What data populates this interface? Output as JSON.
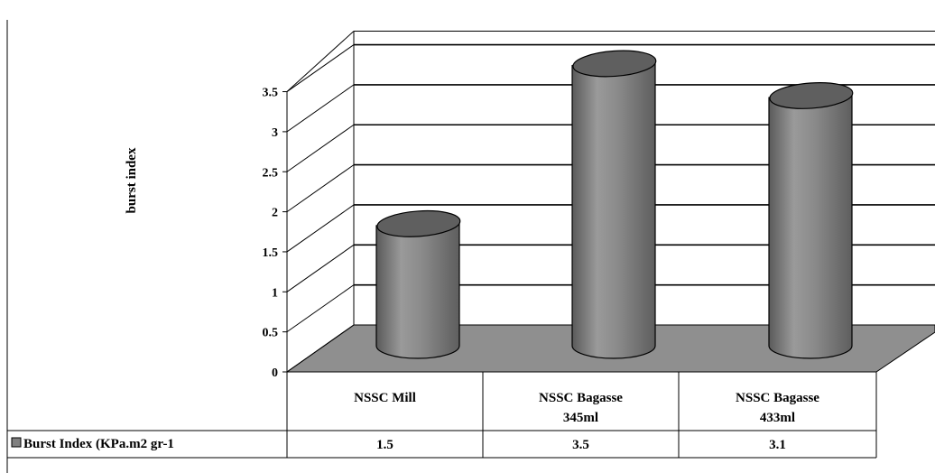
{
  "chart_data": {
    "type": "bar",
    "ylabel": "burst index",
    "ylim": [
      0,
      3.5
    ],
    "yticks": [
      "0",
      "0.5",
      "1",
      "1.5",
      "2",
      "2.5",
      "3",
      "3.5"
    ],
    "categories": [
      [
        "NSSC Mill"
      ],
      [
        "NSSC Bagasse",
        "345ml"
      ],
      [
        "NSSC Bagasse",
        "433ml"
      ]
    ],
    "series": [
      {
        "name": "Burst Index (KPa.m2 gr-1",
        "values": [
          1.5,
          3.5,
          3.1
        ],
        "color": "#808080"
      }
    ],
    "data_table": {
      "legend_label": "Burst Index (KPa.m2 gr-1",
      "cells": [
        "1.5",
        "3.5",
        "3.1"
      ]
    },
    "grid": true,
    "legend": "data-table"
  }
}
